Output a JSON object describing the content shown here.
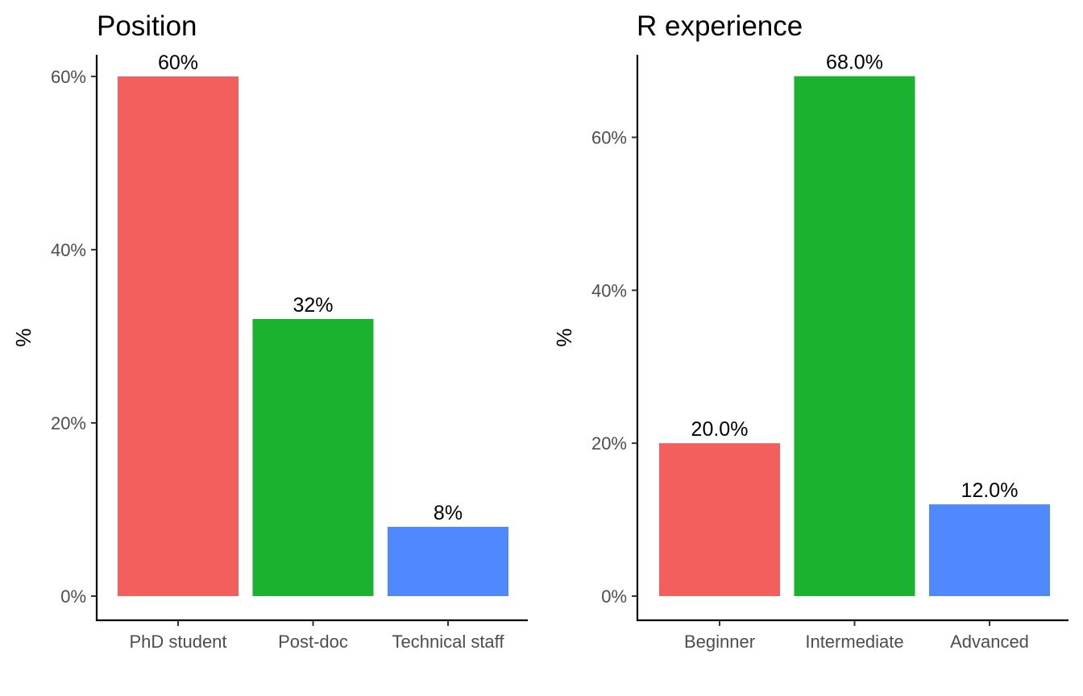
{
  "chart_data": [
    {
      "type": "bar",
      "title": "Position",
      "ylabel": "%",
      "xlabel": "",
      "categories": [
        "PhD student",
        "Post-doc",
        "Technical staff"
      ],
      "values": [
        60,
        32,
        8
      ],
      "data_labels": [
        "60%",
        "32%",
        "8%"
      ],
      "colors": [
        "#F25F5C",
        "#1AB22F",
        "#5088FF"
      ],
      "ylim": [
        0,
        62.5
      ],
      "yticks": [
        0,
        20,
        40,
        60
      ],
      "ytick_labels": [
        "0%",
        "20%",
        "40%",
        "60%"
      ],
      "grid": false,
      "legend": "none"
    },
    {
      "type": "bar",
      "title": "R experience",
      "ylabel": "%",
      "xlabel": "",
      "categories": [
        "Beginner",
        "Intermediate",
        "Advanced"
      ],
      "values": [
        20,
        68,
        12
      ],
      "data_labels": [
        "20.0%",
        "68.0%",
        "12.0%"
      ],
      "colors": [
        "#F25F5C",
        "#1AB22F",
        "#5088FF"
      ],
      "ylim": [
        0,
        70.8
      ],
      "yticks": [
        0,
        20,
        40,
        60
      ],
      "ytick_labels": [
        "0%",
        "20%",
        "40%",
        "60%"
      ],
      "grid": false,
      "legend": "none"
    }
  ]
}
